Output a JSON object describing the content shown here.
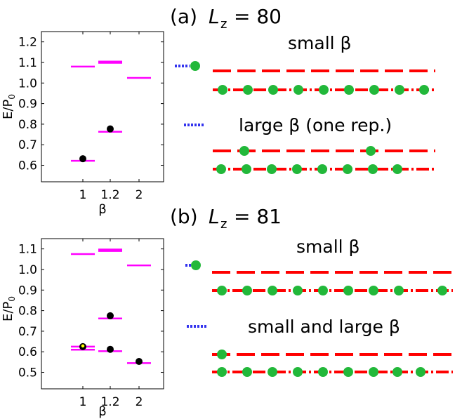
{
  "panels": [
    {
      "id": "a",
      "prefix": "(a)",
      "lz_symbol": "L",
      "lz_sub": "z",
      "lz_value": "= 80",
      "labels": [
        "small β",
        "large β (one rep.)"
      ],
      "chart_data": {
        "type": "scatter",
        "xlabel": "β",
        "ylabel": "E/P0",
        "ylabel_main": "E/P",
        "ylabel_sub": "0",
        "categories": [
          "1",
          "1.2",
          "2"
        ],
        "ylim": [
          0.52,
          1.25
        ],
        "yticks": [
          "0.6",
          "0.7",
          "0.8",
          "0.9",
          "1.0",
          "1.1",
          "1.2"
        ],
        "levels": [
          {
            "x": "1",
            "y": 1.08,
            "color": "#ff00ff"
          },
          {
            "x": "1",
            "y": 0.622,
            "color": "#ff00ff"
          },
          {
            "x": "1.2",
            "y": 1.098,
            "color": "#ff00ff"
          },
          {
            "x": "1.2",
            "y": 1.104,
            "color": "#ff00ff"
          },
          {
            "x": "1.2",
            "y": 0.763,
            "color": "#ff00ff"
          },
          {
            "x": "2",
            "y": 1.025,
            "color": "#ff00ff"
          }
        ],
        "points": [
          {
            "x": "1",
            "y": 0.632,
            "color": "#000000"
          },
          {
            "x": "1.2",
            "y": 0.777,
            "color": "#000000"
          }
        ]
      }
    },
    {
      "id": "b",
      "prefix": "(b)",
      "lz_symbol": "L",
      "lz_sub": "z",
      "lz_value": "= 81",
      "labels": [
        "small β",
        "small and large β"
      ],
      "chart_data": {
        "type": "scatter",
        "xlabel": "β",
        "ylabel": "E/P0",
        "ylabel_main": "E/P",
        "ylabel_sub": "0",
        "categories": [
          "1",
          "1.2",
          "2"
        ],
        "ylim": [
          0.42,
          1.15
        ],
        "yticks": [
          "0.5",
          "0.6",
          "0.7",
          "0.8",
          "0.9",
          "1.0",
          "1.1"
        ],
        "levels": [
          {
            "x": "1",
            "y": 1.075,
            "color": "#ff00ff"
          },
          {
            "x": "1",
            "y": 0.625,
            "color": "#ff00ff"
          },
          {
            "x": "1",
            "y": 0.61,
            "color": "#ff00ff"
          },
          {
            "x": "1.2",
            "y": 1.09,
            "color": "#ff00ff"
          },
          {
            "x": "1.2",
            "y": 1.097,
            "color": "#ff00ff"
          },
          {
            "x": "1.2",
            "y": 0.762,
            "color": "#ff00ff"
          },
          {
            "x": "1.2",
            "y": 0.603,
            "color": "#ff00ff"
          },
          {
            "x": "2",
            "y": 1.02,
            "color": "#ff00ff"
          },
          {
            "x": "2",
            "y": 0.545,
            "color": "#ff00ff"
          }
        ],
        "points": [
          {
            "x": "1",
            "y": 0.625,
            "color": "#000000",
            "inner_color": "#ffff00"
          },
          {
            "x": "1.2",
            "y": 0.775,
            "color": "#000000"
          },
          {
            "x": "1.2",
            "y": 0.612,
            "color": "#000000"
          },
          {
            "x": "2",
            "y": 0.553,
            "color": "#000000"
          }
        ]
      }
    }
  ],
  "colors": {
    "wire": "#ff0000",
    "bead": "#22b83a",
    "dotted": "#3333ee",
    "level": "#ff00ff",
    "point": "#000000",
    "point_highlight": "#ffff00"
  }
}
